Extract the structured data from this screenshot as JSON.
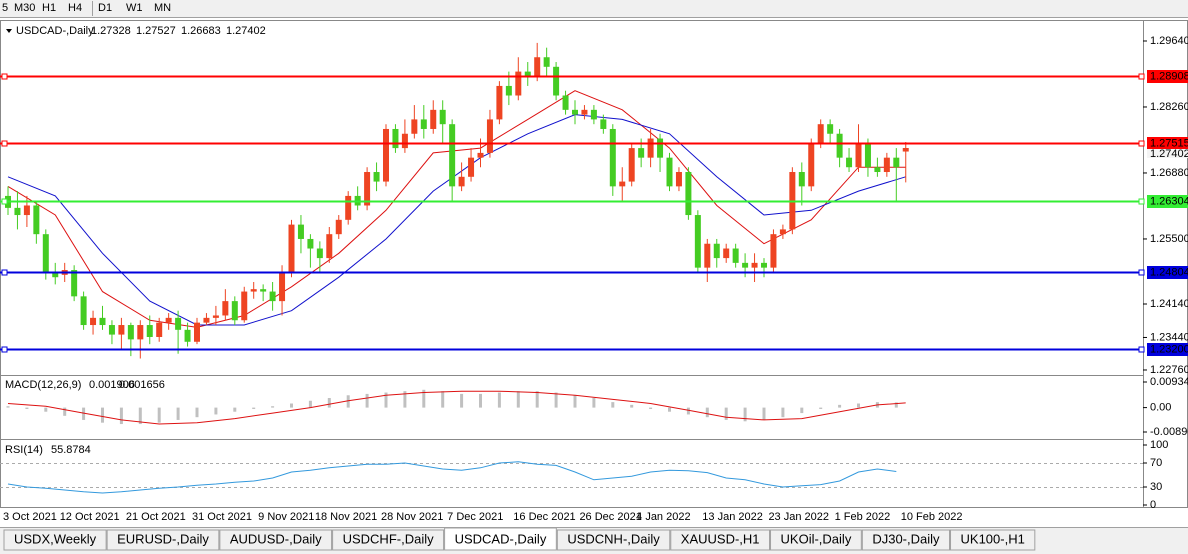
{
  "toolbar": {
    "timeframes": [
      "5",
      "M30",
      "H1",
      "H4",
      "D1",
      "W1",
      "MN"
    ]
  },
  "chart_data": {
    "type": "candlestick",
    "title": "USDCAD-,Daily",
    "up_color": "#ee4422",
    "down_color": "#44cc22",
    "categories": [
      "3 Oct 2021",
      null,
      null,
      null,
      null,
      null,
      "12 Oct 2021",
      null,
      null,
      null,
      null,
      null,
      null,
      "21 Oct 2021",
      null,
      null,
      null,
      null,
      null,
      null,
      "31 Oct 2021",
      null,
      null,
      null,
      null,
      null,
      null,
      "9 Nov 2021",
      null,
      null,
      null,
      null,
      null,
      "18 Nov 2021",
      null,
      null,
      null,
      null,
      null,
      null,
      "28 Nov 2021",
      null,
      null,
      null,
      null,
      null,
      null,
      "7 Dec 2021",
      null,
      null,
      null,
      null,
      null,
      null,
      "16 Dec 2021",
      null,
      null,
      null,
      null,
      null,
      null,
      "26 Dec 2021",
      null,
      null,
      null,
      null,
      null,
      "4 Jan 2022",
      null,
      null,
      null,
      null,
      null,
      null,
      "13 Jan 2022",
      null,
      null,
      null,
      null,
      null,
      null,
      "23 Jan 2022",
      null,
      null,
      null,
      null,
      null,
      null,
      "1 Feb 2022",
      null,
      null,
      null,
      null,
      null,
      null,
      "10 Feb 2022"
    ],
    "ohlc": [
      [
        1.264,
        1.266,
        1.26,
        1.2615
      ],
      [
        1.2615,
        1.265,
        1.257,
        1.26
      ],
      [
        1.26,
        1.264,
        1.2575,
        1.262
      ],
      [
        1.262,
        1.263,
        1.254,
        1.256
      ],
      [
        1.256,
        1.257,
        1.2465,
        1.248
      ],
      [
        1.248,
        1.25,
        1.2455,
        1.247
      ],
      [
        1.2475,
        1.25,
        1.246,
        1.2485
      ],
      [
        1.2485,
        1.2495,
        1.242,
        1.243
      ],
      [
        1.243,
        1.244,
        1.236,
        1.237
      ],
      [
        1.237,
        1.24,
        1.235,
        1.2385
      ],
      [
        1.2385,
        1.241,
        1.236,
        1.237
      ],
      [
        1.237,
        1.238,
        1.233,
        1.235
      ],
      [
        1.235,
        1.2385,
        1.232,
        1.237
      ],
      [
        1.237,
        1.2375,
        1.2305,
        1.234
      ],
      [
        1.234,
        1.238,
        1.23,
        1.237
      ],
      [
        1.237,
        1.239,
        1.233,
        1.2345
      ],
      [
        1.2345,
        1.2385,
        1.2335,
        1.2375
      ],
      [
        1.2375,
        1.2395,
        1.236,
        1.2385
      ],
      [
        1.2385,
        1.24,
        1.231,
        1.236
      ],
      [
        1.236,
        1.2375,
        1.2325,
        1.2335
      ],
      [
        1.2335,
        1.2385,
        1.233,
        1.2375
      ],
      [
        1.2375,
        1.2395,
        1.237,
        1.2385
      ],
      [
        1.2385,
        1.241,
        1.237,
        1.239
      ],
      [
        1.239,
        1.2445,
        1.238,
        1.242
      ],
      [
        1.242,
        1.243,
        1.237,
        1.238
      ],
      [
        1.238,
        1.245,
        1.2375,
        1.244
      ],
      [
        1.244,
        1.246,
        1.2425,
        1.2445
      ],
      [
        1.2445,
        1.2455,
        1.242,
        1.244
      ],
      [
        1.244,
        1.246,
        1.24,
        1.242
      ],
      [
        1.242,
        1.2495,
        1.239,
        1.248
      ],
      [
        1.248,
        1.259,
        1.247,
        1.258
      ],
      [
        1.258,
        1.26,
        1.252,
        1.255
      ],
      [
        1.255,
        1.256,
        1.249,
        1.253
      ],
      [
        1.253,
        1.2545,
        1.248,
        1.251
      ],
      [
        1.251,
        1.2575,
        1.25,
        1.256
      ],
      [
        1.256,
        1.26,
        1.255,
        1.259
      ],
      [
        1.259,
        1.265,
        1.258,
        1.264
      ],
      [
        1.264,
        1.266,
        1.261,
        1.262
      ],
      [
        1.262,
        1.27,
        1.261,
        1.269
      ],
      [
        1.269,
        1.271,
        1.265,
        1.267
      ],
      [
        1.267,
        1.279,
        1.266,
        1.278
      ],
      [
        1.278,
        1.279,
        1.273,
        1.274
      ],
      [
        1.274,
        1.28,
        1.273,
        1.277
      ],
      [
        1.277,
        1.283,
        1.276,
        1.28
      ],
      [
        1.28,
        1.283,
        1.276,
        1.278
      ],
      [
        1.278,
        1.284,
        1.277,
        1.282
      ],
      [
        1.282,
        1.284,
        1.275,
        1.279
      ],
      [
        1.279,
        1.28,
        1.263,
        1.266
      ],
      [
        1.266,
        1.271,
        1.265,
        1.268
      ],
      [
        1.268,
        1.274,
        1.267,
        1.272
      ],
      [
        1.272,
        1.276,
        1.27,
        1.273
      ],
      [
        1.273,
        1.282,
        1.272,
        1.28
      ],
      [
        1.28,
        1.288,
        1.279,
        1.287
      ],
      [
        1.287,
        1.29,
        1.283,
        1.285
      ],
      [
        1.285,
        1.293,
        1.284,
        1.29
      ],
      [
        1.29,
        1.292,
        1.287,
        1.289
      ],
      [
        1.289,
        1.296,
        1.288,
        1.293
      ],
      [
        1.293,
        1.295,
        1.289,
        1.291
      ],
      [
        1.291,
        1.292,
        1.284,
        1.285
      ],
      [
        1.285,
        1.286,
        1.281,
        1.282
      ],
      [
        1.282,
        1.284,
        1.279,
        1.281
      ],
      [
        1.281,
        1.283,
        1.28,
        1.282
      ],
      [
        1.282,
        1.283,
        1.279,
        1.28
      ],
      [
        1.28,
        1.281,
        1.277,
        1.278
      ],
      [
        1.278,
        1.279,
        1.264,
        1.266
      ],
      [
        1.266,
        1.27,
        1.263,
        1.267
      ],
      [
        1.267,
        1.275,
        1.266,
        1.274
      ],
      [
        1.274,
        1.276,
        1.27,
        1.272
      ],
      [
        1.272,
        1.278,
        1.27,
        1.276
      ],
      [
        1.276,
        1.277,
        1.269,
        1.272
      ],
      [
        1.272,
        1.273,
        1.265,
        1.266
      ],
      [
        1.266,
        1.27,
        1.265,
        1.269
      ],
      [
        1.269,
        1.27,
        1.259,
        1.26
      ],
      [
        1.26,
        1.261,
        1.248,
        1.249
      ],
      [
        1.249,
        1.255,
        1.246,
        1.254
      ],
      [
        1.254,
        1.255,
        1.249,
        1.251
      ],
      [
        1.251,
        1.254,
        1.25,
        1.253
      ],
      [
        1.253,
        1.254,
        1.249,
        1.25
      ],
      [
        1.25,
        1.252,
        1.247,
        1.249
      ],
      [
        1.249,
        1.252,
        1.246,
        1.25
      ],
      [
        1.25,
        1.251,
        1.247,
        1.249
      ],
      [
        1.249,
        1.257,
        1.248,
        1.256
      ],
      [
        1.256,
        1.258,
        1.255,
        1.257
      ],
      [
        1.257,
        1.27,
        1.256,
        1.269
      ],
      [
        1.269,
        1.271,
        1.262,
        1.266
      ],
      [
        1.266,
        1.276,
        1.265,
        1.275
      ],
      [
        1.275,
        1.28,
        1.274,
        1.279
      ],
      [
        1.279,
        1.28,
        1.275,
        1.277
      ],
      [
        1.277,
        1.278,
        1.27,
        1.272
      ],
      [
        1.272,
        1.274,
        1.269,
        1.27
      ],
      [
        1.27,
        1.279,
        1.269,
        1.275
      ],
      [
        1.275,
        1.276,
        1.268,
        1.27
      ],
      [
        1.27,
        1.272,
        1.268,
        1.269
      ],
      [
        1.269,
        1.273,
        1.268,
        1.272
      ],
      [
        1.272,
        1.274,
        1.263,
        1.27
      ],
      [
        1.27328,
        1.27527,
        1.26683,
        1.27402
      ]
    ],
    "ylim": [
      1.22676,
      1.30037
    ],
    "yticks": [
      {
        "value": 1.2964,
        "label": "1.29640"
      },
      {
        "value": 1.2826,
        "label": "1.28260"
      },
      {
        "value": 1.2688,
        "label": "1.26880"
      },
      {
        "value": 1.255,
        "label": "1.25500"
      },
      {
        "value": 1.2414,
        "label": "1.24140"
      },
      {
        "value": 1.2344,
        "label": "1.23440"
      },
      {
        "value": 1.2276,
        "label": "1.22760"
      }
    ],
    "levels": [
      {
        "value": 1.28908,
        "color": "#ff0000"
      },
      {
        "value": 1.27515,
        "color": "#ff0000"
      },
      {
        "value": 1.26304,
        "color": "#33ee33"
      },
      {
        "value": 1.24804,
        "color": "#0000dd"
      },
      {
        "value": 1.232,
        "label": "1.23200",
        "color": "#0000dd"
      }
    ],
    "ma": [
      {
        "color": "#dd1111",
        "x": [
          0,
          5,
          10,
          15,
          20,
          25,
          30,
          35,
          40,
          45,
          50,
          55,
          60,
          65,
          70,
          75,
          80,
          85,
          90,
          95
        ],
        "values": [
          1.266,
          1.26,
          1.244,
          1.238,
          1.2365,
          1.239,
          1.245,
          1.252,
          1.261,
          1.273,
          1.274,
          1.28,
          1.286,
          1.282,
          1.274,
          1.262,
          1.254,
          1.259,
          1.27,
          1.27
        ]
      },
      {
        "color": "#1111cc",
        "x": [
          0,
          5,
          10,
          15,
          20,
          25,
          30,
          35,
          40,
          45,
          50,
          55,
          60,
          65,
          70,
          75,
          80,
          85,
          90,
          95
        ],
        "values": [
          1.268,
          1.264,
          1.252,
          1.242,
          1.237,
          1.237,
          1.24,
          1.247,
          1.255,
          1.265,
          1.272,
          1.277,
          1.281,
          1.28,
          1.277,
          1.268,
          1.26,
          1.261,
          1.265,
          1.268
        ]
      }
    ],
    "macd": {
      "title": "MACD(12,26,9)",
      "main": 0.001906,
      "signal": 0.001656,
      "ylim": [
        -0.01073,
        0.01117
      ],
      "yticks": [
        0.009345,
        {
          "value": 0,
          "label": "0.00"
        },
        {
          "value": -0.0089,
          "label": "-0.00890"
        }
      ],
      "hist_color": "#c0c0c0",
      "signal_color": "#dd1111",
      "hist_x": [
        0,
        2,
        4,
        6,
        8,
        10,
        12,
        14,
        16,
        18,
        20,
        22,
        24,
        26,
        28,
        30,
        32,
        34,
        36,
        38,
        40,
        42,
        44,
        46,
        48,
        50,
        52,
        54,
        56,
        58,
        60,
        62,
        64,
        66,
        68,
        70,
        72,
        74,
        76,
        78,
        80,
        82,
        84,
        86,
        88,
        90,
        92,
        94
      ],
      "hist": [
        0.0005,
        -0.0005,
        -0.0015,
        -0.003,
        -0.0045,
        -0.0055,
        -0.006,
        -0.006,
        -0.0055,
        -0.0045,
        -0.0035,
        -0.0025,
        -0.0015,
        -0.0005,
        0.0005,
        0.0015,
        0.0025,
        0.0035,
        0.0045,
        0.005,
        0.0055,
        0.006,
        0.0065,
        0.006,
        0.005,
        0.005,
        0.0055,
        0.006,
        0.006,
        0.0055,
        0.0045,
        0.0035,
        0.002,
        0.001,
        -0.0005,
        -0.0015,
        -0.0025,
        -0.0035,
        -0.0045,
        -0.005,
        -0.0045,
        -0.0035,
        -0.002,
        -0.0005,
        0.001,
        0.0015,
        0.002,
        0.0019
      ],
      "signal_x": [
        0,
        4,
        8,
        12,
        16,
        20,
        24,
        28,
        32,
        36,
        40,
        44,
        48,
        52,
        56,
        60,
        64,
        68,
        72,
        76,
        80,
        84,
        88,
        92,
        95
      ],
      "signal_values": [
        0.0015,
        0.0005,
        -0.002,
        -0.0045,
        -0.006,
        -0.0055,
        -0.004,
        -0.002,
        0,
        0.0025,
        0.0045,
        0.0055,
        0.006,
        0.006,
        0.0055,
        0.0045,
        0.003,
        0.0015,
        -0.001,
        -0.0035,
        -0.0045,
        -0.004,
        -0.0015,
        0.001,
        0.0017
      ]
    },
    "rsi": {
      "title": "RSI(14)",
      "value": 55.8784,
      "color": "#3399dd",
      "ylim": [
        0,
        100
      ],
      "yticks": [
        100,
        70,
        30,
        0
      ],
      "levels": [
        70,
        30
      ],
      "x": [
        0,
        2,
        4,
        6,
        8,
        10,
        12,
        14,
        16,
        18,
        20,
        22,
        24,
        26,
        28,
        30,
        32,
        34,
        36,
        38,
        40,
        42,
        44,
        46,
        48,
        50,
        52,
        54,
        56,
        58,
        60,
        62,
        64,
        66,
        68,
        70,
        72,
        74,
        76,
        78,
        80,
        82,
        84,
        86,
        88,
        90,
        92,
        94
      ],
      "values": [
        35,
        30,
        28,
        25,
        22,
        20,
        22,
        25,
        28,
        30,
        33,
        35,
        38,
        40,
        45,
        55,
        58,
        62,
        65,
        68,
        68,
        70,
        65,
        60,
        58,
        62,
        70,
        72,
        68,
        66,
        55,
        42,
        45,
        48,
        55,
        58,
        57,
        54,
        45,
        42,
        35,
        30,
        32,
        34,
        40,
        55,
        60,
        55.9
      ]
    }
  },
  "tabs": {
    "items": [
      "USDX,Weekly",
      "EURUSD-,Daily",
      "AUDUSD-,Daily",
      "USDCHF-,Daily",
      "USDCAD-,Daily",
      "USDCNH-,Daily",
      "XAUUSD-,H1",
      "UKOil-,Daily",
      "DJ30-,Daily",
      "UK100-,H1"
    ],
    "active": 4
  }
}
